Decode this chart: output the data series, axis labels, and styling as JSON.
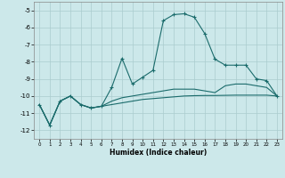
{
  "xlabel": "Humidex (Indice chaleur)",
  "background_color": "#cce8ea",
  "grid_color": "#aaccce",
  "line_color": "#1a6b6b",
  "xlim": [
    -0.5,
    23.5
  ],
  "ylim": [
    -12.5,
    -4.5
  ],
  "yticks": [
    -5,
    -6,
    -7,
    -8,
    -9,
    -10,
    -11,
    -12
  ],
  "xticks": [
    0,
    1,
    2,
    3,
    4,
    5,
    6,
    7,
    8,
    9,
    10,
    11,
    12,
    13,
    14,
    15,
    16,
    17,
    18,
    19,
    20,
    21,
    22,
    23
  ],
  "line1_x": [
    0,
    1,
    2,
    3,
    4,
    5,
    6,
    7,
    8,
    9,
    10,
    11,
    12,
    13,
    14,
    15,
    16,
    17,
    18,
    19,
    20,
    21,
    22,
    23
  ],
  "line1_y": [
    -10.5,
    -11.7,
    -10.3,
    -10.0,
    -10.5,
    -10.7,
    -10.6,
    -10.3,
    -10.1,
    -10.0,
    -9.9,
    -9.8,
    -9.7,
    -9.6,
    -9.6,
    -9.6,
    -9.7,
    -9.8,
    -9.4,
    -9.3,
    -9.3,
    -9.4,
    -9.5,
    -10.0
  ],
  "line2_x": [
    0,
    1,
    2,
    3,
    4,
    5,
    6,
    7,
    8,
    9,
    10,
    11,
    12,
    13,
    14,
    15,
    16,
    17,
    18,
    19,
    20,
    21,
    22,
    23
  ],
  "line2_y": [
    -10.5,
    -11.7,
    -10.3,
    -10.0,
    -10.5,
    -10.7,
    -10.6,
    -9.5,
    -7.8,
    -9.3,
    -8.9,
    -8.5,
    -5.6,
    -5.25,
    -5.2,
    -5.4,
    -6.35,
    -7.85,
    -8.2,
    -8.2,
    -8.2,
    -9.0,
    -9.1,
    -10.0
  ],
  "line3_x": [
    0,
    1,
    2,
    3,
    4,
    5,
    6,
    7,
    8,
    9,
    10,
    11,
    12,
    13,
    14,
    15,
    16,
    17,
    18,
    19,
    20,
    21,
    22,
    23
  ],
  "line3_y": [
    -10.5,
    -11.7,
    -10.3,
    -10.0,
    -10.5,
    -10.7,
    -10.6,
    -10.5,
    -10.4,
    -10.3,
    -10.2,
    -10.15,
    -10.1,
    -10.05,
    -10.0,
    -9.98,
    -9.97,
    -9.97,
    -9.96,
    -9.95,
    -9.95,
    -9.95,
    -9.95,
    -10.0
  ]
}
